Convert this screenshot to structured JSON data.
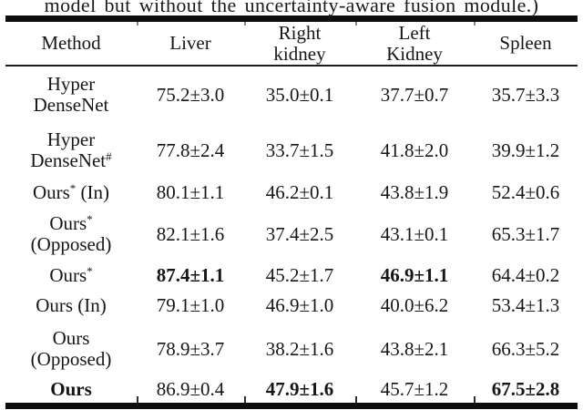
{
  "caption": "model but without the uncertainty-aware fusion module.)",
  "table": {
    "headers": [
      {
        "l1": "Method",
        "l2": ""
      },
      {
        "l1": "Liver",
        "l2": ""
      },
      {
        "l1": "Right",
        "l2": "kidney"
      },
      {
        "l1": "Left",
        "l2": "Kidney"
      },
      {
        "l1": "Spleen",
        "l2": ""
      }
    ],
    "rows": [
      {
        "method": {
          "l1": "Hyper",
          "l1sup": "",
          "l1post": "",
          "l2": "DenseNet",
          "l2sup": ""
        },
        "values": [
          "75.2±3.0",
          "35.0±0.1",
          "37.7±0.7",
          "35.7±3.3"
        ]
      },
      {
        "method": {
          "l1": "Hyper",
          "l1sup": "",
          "l1post": "",
          "l2": "DenseNet",
          "l2sup": "#"
        },
        "values": [
          "77.8±2.4",
          "33.7±1.5",
          "41.8±2.0",
          "39.9±1.2"
        ]
      },
      {
        "method": {
          "l1": "Ours",
          "l1sup": "*",
          "l1post": " (In)",
          "l2": "",
          "l2sup": ""
        },
        "values": [
          "80.1±1.1",
          "46.2±0.1",
          "43.8±1.9",
          "52.4±0.6"
        ]
      },
      {
        "method": {
          "l1": "Ours",
          "l1sup": "*",
          "l1post": "",
          "l2": "(Opposed)",
          "l2sup": ""
        },
        "values": [
          "82.1±1.6",
          "37.4±2.5",
          "43.1±0.1",
          "65.3±1.7"
        ]
      },
      {
        "method": {
          "l1": "Ours",
          "l1sup": "*",
          "l1post": "",
          "l2": "",
          "l2sup": ""
        },
        "values": [
          "87.4±1.1",
          "45.2±1.7",
          "46.9±1.1",
          "64.4±0.2"
        ]
      },
      {
        "method": {
          "l1": "Ours (In)",
          "l1sup": "",
          "l1post": "",
          "l2": "",
          "l2sup": ""
        },
        "values": [
          "79.1±1.0",
          "46.9±1.0",
          "40.0±6.2",
          "53.4±1.3"
        ]
      },
      {
        "method": {
          "l1": "Ours",
          "l1sup": "",
          "l1post": "",
          "l2": "(Opposed)",
          "l2sup": ""
        },
        "values": [
          "78.9±3.7",
          "38.2±1.6",
          "43.8±2.1",
          "66.3±5.2"
        ]
      },
      {
        "method": {
          "l1": "Ours",
          "l1sup": "",
          "l1post": "",
          "l2": "",
          "l2sup": ""
        },
        "values": [
          "86.9±0.4",
          "47.9±1.6",
          "45.7±1.2",
          "67.5±2.8"
        ]
      }
    ]
  }
}
